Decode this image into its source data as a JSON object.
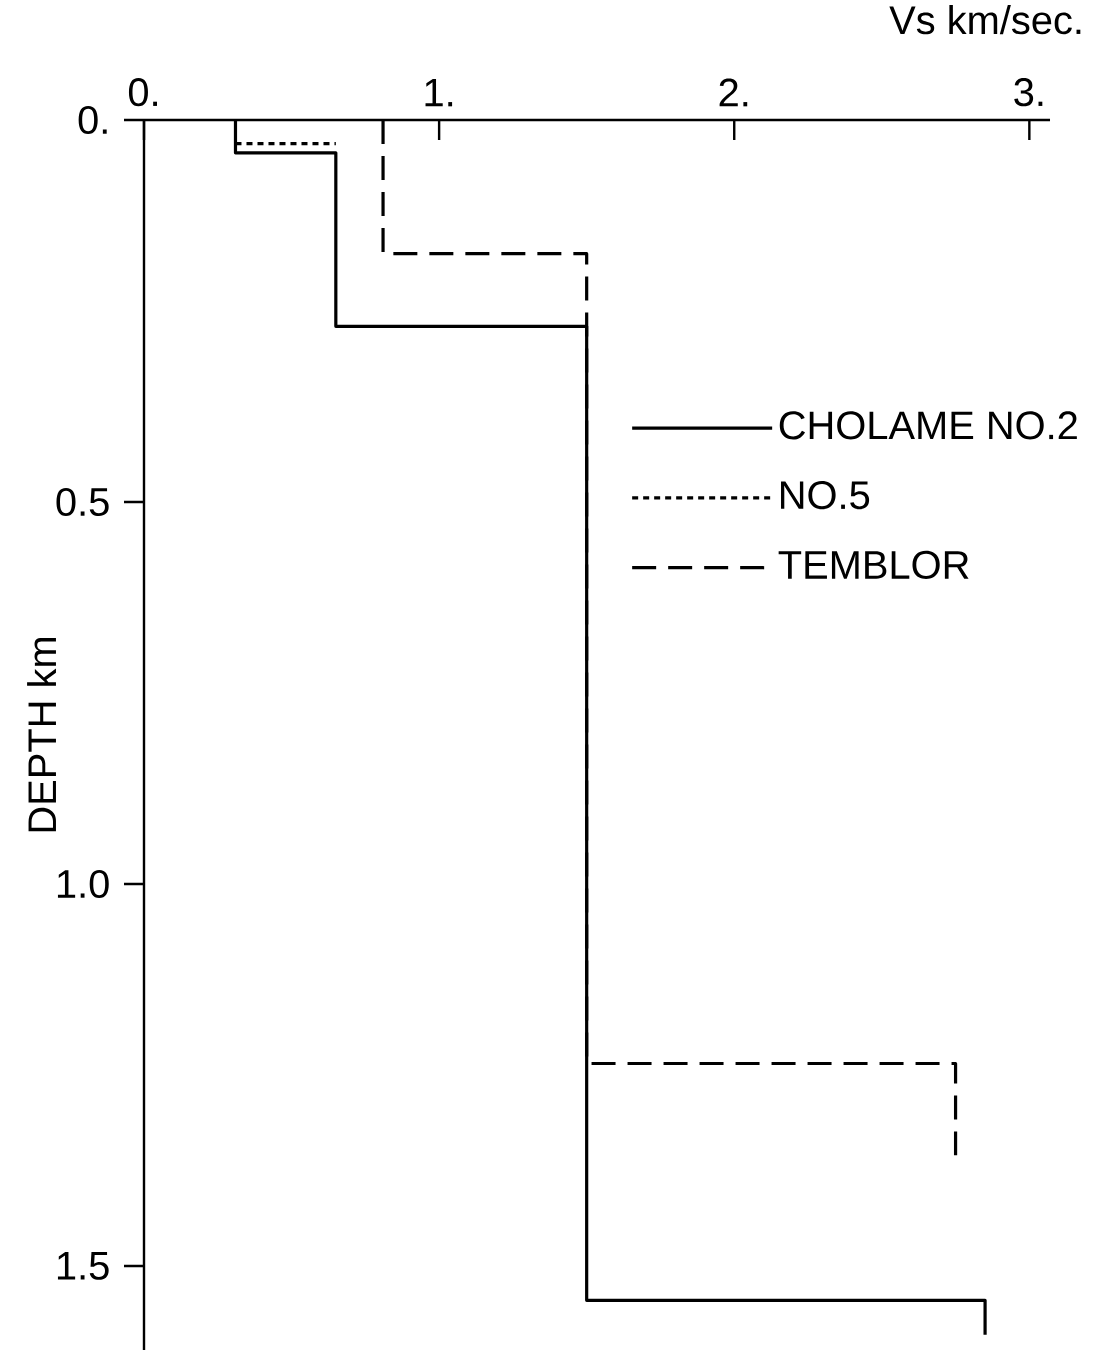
{
  "chart_data": {
    "type": "line",
    "xlabel": "Vs   km/sec.",
    "ylabel": "DEPTH km",
    "xlim": [
      0,
      3.07
    ],
    "ylim": [
      1.61,
      0
    ],
    "xticks": [
      {
        "value": 0,
        "label": "0."
      },
      {
        "value": 1,
        "label": "1."
      },
      {
        "value": 2,
        "label": "2."
      },
      {
        "value": 3,
        "label": "3."
      }
    ],
    "yticks": [
      {
        "value": 0,
        "label": "0."
      },
      {
        "value": 0.5,
        "label": "0.5"
      },
      {
        "value": 1.0,
        "label": "1.0"
      },
      {
        "value": 1.5,
        "label": "1.5"
      }
    ],
    "legend": "right",
    "marker": "none",
    "series": [
      {
        "name": "CHOLAME NO.2",
        "color": "#000000",
        "line_style": "solid",
        "x": [
          0.31,
          0.31,
          0.65,
          0.65,
          1.5,
          1.5,
          2.85,
          2.85
        ],
        "values": [
          0,
          0.043,
          0.043,
          0.27,
          0.27,
          1.545,
          1.545,
          1.59
        ]
      },
      {
        "name": "NO.5",
        "color": "#000000",
        "line_style": "dotted",
        "x": [
          0.31,
          0.65
        ],
        "values": [
          0.031,
          0.031
        ]
      },
      {
        "name": "TEMBLOR",
        "color": "#000000",
        "line_style": "dashed",
        "x": [
          0.81,
          0.81,
          1.5,
          1.5,
          2.75,
          2.75
        ],
        "values": [
          0,
          0.175,
          0.175,
          1.235,
          1.235,
          1.355
        ]
      }
    ]
  }
}
